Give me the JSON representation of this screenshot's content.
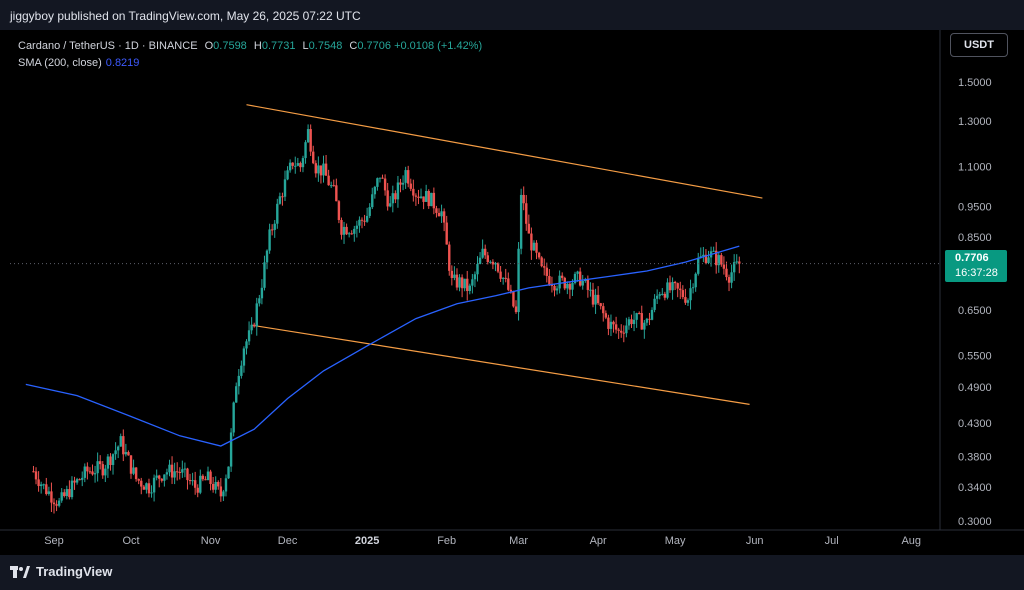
{
  "header": {
    "publisher_line": "jiggyboy published on TradingView.com, May 26, 2025 07:22 UTC"
  },
  "legend": {
    "symbol": "Cardano / TetherUS · 1D · BINANCE",
    "open_label": "O",
    "open": "0.7598",
    "high_label": "H",
    "high": "0.7731",
    "low_label": "L",
    "low": "0.7548",
    "close_label": "C",
    "close": "0.7706",
    "change": "+0.0108 (+1.42%)",
    "sma_label": "SMA (200, close)",
    "sma_value": "0.8219"
  },
  "currency_button": "USDT",
  "price_tag": {
    "price": "0.7706",
    "countdown": "16:37:28"
  },
  "footer": {
    "brand": "TradingView"
  },
  "colors": {
    "up": "#26a69a",
    "down": "#ef5350",
    "sma": "#2962ff",
    "trendline": "#f59d45",
    "price_tag": "#089981",
    "background": "#000000"
  },
  "chart_data": {
    "type": "candlestick",
    "y_scale": "log",
    "ylim": [
      0.3,
      1.55
    ],
    "y_ticks": [
      "1.5000",
      "1.3000",
      "1.1000",
      "0.9500",
      "0.8500",
      "0.7706",
      "0.6500",
      "0.5500",
      "0.4900",
      "0.4300",
      "0.3800",
      "0.3400",
      "0.3000"
    ],
    "x_ticks": [
      {
        "label": "Sep",
        "date": "2024-09-01"
      },
      {
        "label": "Oct",
        "date": "2024-10-01"
      },
      {
        "label": "Nov",
        "date": "2024-11-01"
      },
      {
        "label": "Dec",
        "date": "2024-12-01"
      },
      {
        "label": "2025",
        "date": "2025-01-01",
        "bold": true
      },
      {
        "label": "Feb",
        "date": "2025-02-01"
      },
      {
        "label": "Mar",
        "date": "2025-03-01"
      },
      {
        "label": "Apr",
        "date": "2025-04-01"
      },
      {
        "label": "May",
        "date": "2025-05-01"
      },
      {
        "label": "Jun",
        "date": "2025-06-01"
      },
      {
        "label": "Jul",
        "date": "2025-07-01"
      },
      {
        "label": "Aug",
        "date": "2025-08-01"
      }
    ],
    "price_anchors": [
      [
        "2024-08-24",
        0.36
      ],
      [
        "2024-08-28",
        0.34
      ],
      [
        "2024-09-03",
        0.32
      ],
      [
        "2024-09-08",
        0.34
      ],
      [
        "2024-09-14",
        0.36
      ],
      [
        "2024-09-20",
        0.365
      ],
      [
        "2024-09-27",
        0.4
      ],
      [
        "2024-10-03",
        0.35
      ],
      [
        "2024-10-08",
        0.34
      ],
      [
        "2024-10-14",
        0.36
      ],
      [
        "2024-10-20",
        0.36
      ],
      [
        "2024-10-26",
        0.34
      ],
      [
        "2024-10-31",
        0.35
      ],
      [
        "2024-11-05",
        0.33
      ],
      [
        "2024-11-08",
        0.37
      ],
      [
        "2024-11-11",
        0.5
      ],
      [
        "2024-11-14",
        0.57
      ],
      [
        "2024-11-17",
        0.6
      ],
      [
        "2024-11-21",
        0.72
      ],
      [
        "2024-11-24",
        0.85
      ],
      [
        "2024-11-28",
        0.98
      ],
      [
        "2024-12-03",
        1.12
      ],
      [
        "2024-12-06",
        1.1
      ],
      [
        "2024-12-09",
        1.25
      ],
      [
        "2024-12-12",
        1.1
      ],
      [
        "2024-12-15",
        1.08
      ],
      [
        "2024-12-19",
        1.0
      ],
      [
        "2024-12-22",
        0.88
      ],
      [
        "2024-12-27",
        0.88
      ],
      [
        "2025-01-01",
        0.92
      ],
      [
        "2025-01-06",
        1.07
      ],
      [
        "2025-01-10",
        0.95
      ],
      [
        "2025-01-16",
        1.08
      ],
      [
        "2025-01-20",
        1.0
      ],
      [
        "2025-01-25",
        0.98
      ],
      [
        "2025-01-30",
        0.93
      ],
      [
        "2025-02-03",
        0.72
      ],
      [
        "2025-02-06",
        0.72
      ],
      [
        "2025-02-10",
        0.7
      ],
      [
        "2025-02-15",
        0.8
      ],
      [
        "2025-02-20",
        0.78
      ],
      [
        "2025-02-25",
        0.7
      ],
      [
        "2025-02-28",
        0.64
      ],
      [
        "2025-03-02",
        1.0
      ],
      [
        "2025-03-05",
        0.85
      ],
      [
        "2025-03-10",
        0.75
      ],
      [
        "2025-03-15",
        0.72
      ],
      [
        "2025-03-20",
        0.72
      ],
      [
        "2025-03-25",
        0.73
      ],
      [
        "2025-03-31",
        0.67
      ],
      [
        "2025-04-05",
        0.62
      ],
      [
        "2025-04-09",
        0.6
      ],
      [
        "2025-04-14",
        0.63
      ],
      [
        "2025-04-20",
        0.62
      ],
      [
        "2025-04-25",
        0.7
      ],
      [
        "2025-05-01",
        0.7
      ],
      [
        "2025-05-06",
        0.68
      ],
      [
        "2025-05-10",
        0.78
      ],
      [
        "2025-05-14",
        0.8
      ],
      [
        "2025-05-18",
        0.78
      ],
      [
        "2025-05-22",
        0.74
      ],
      [
        "2025-05-26",
        0.7706
      ]
    ],
    "sma_200": [
      [
        "2024-08-21",
        0.495
      ],
      [
        "2024-09-10",
        0.475
      ],
      [
        "2024-10-01",
        0.44
      ],
      [
        "2024-10-20",
        0.41
      ],
      [
        "2024-11-05",
        0.395
      ],
      [
        "2024-11-18",
        0.42
      ],
      [
        "2024-12-01",
        0.47
      ],
      [
        "2024-12-15",
        0.52
      ],
      [
        "2025-01-01",
        0.57
      ],
      [
        "2025-01-20",
        0.63
      ],
      [
        "2025-02-05",
        0.665
      ],
      [
        "2025-02-20",
        0.685
      ],
      [
        "2025-03-05",
        0.705
      ],
      [
        "2025-03-20",
        0.72
      ],
      [
        "2025-04-05",
        0.735
      ],
      [
        "2025-04-20",
        0.75
      ],
      [
        "2025-05-05",
        0.775
      ],
      [
        "2025-05-26",
        0.8219
      ]
    ],
    "trendlines": [
      {
        "name": "upper",
        "from": [
          "2024-11-15",
          1.38
        ],
        "to": [
          "2025-06-04",
          0.98
        ]
      },
      {
        "name": "lower",
        "from": [
          "2024-11-17",
          0.615
        ],
        "to": [
          "2025-05-30",
          0.46
        ]
      }
    ],
    "last_price": 0.7706
  }
}
